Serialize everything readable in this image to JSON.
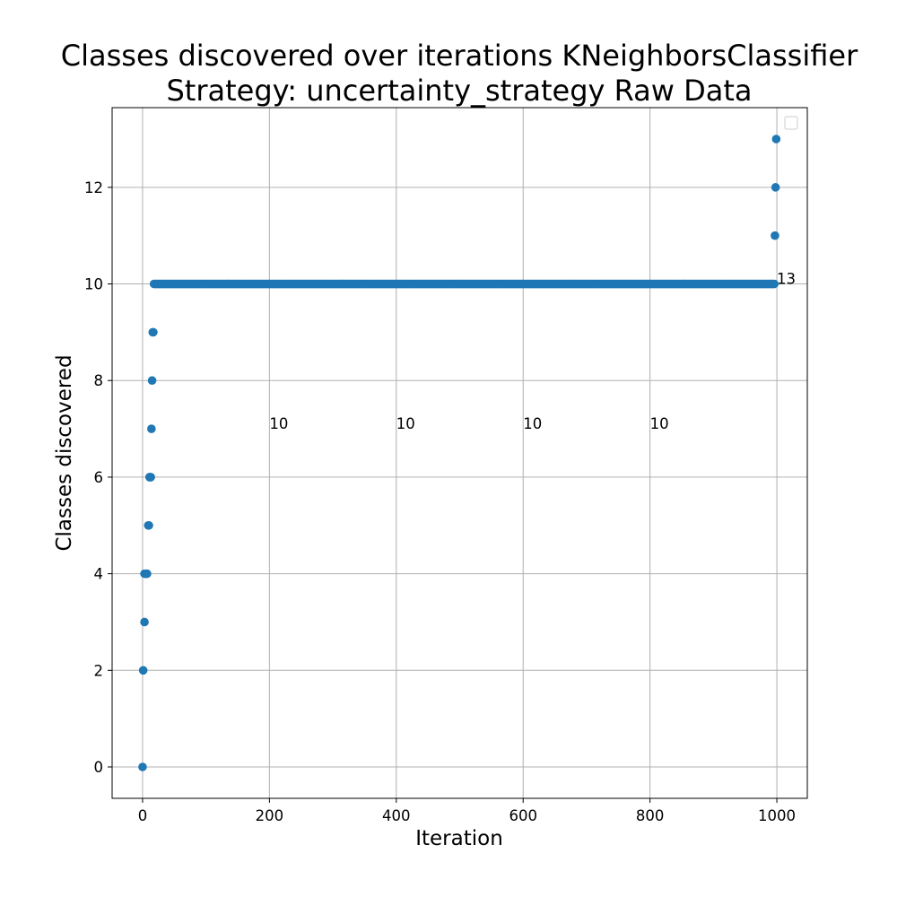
{
  "chart_data": {
    "type": "scatter",
    "title_line1": "Classes discovered over iterations KNeighborsClassifier",
    "title_line2": "Strategy: uncertainty_strategy Raw Data",
    "xlabel": "Iteration",
    "ylabel": "Classes discovered",
    "xlim": [
      -48,
      1048
    ],
    "ylim": [
      -0.65,
      13.65
    ],
    "xticks": [
      0,
      200,
      400,
      600,
      800,
      1000
    ],
    "yticks": [
      0,
      2,
      4,
      6,
      8,
      10,
      12
    ],
    "grid": true,
    "legend": "top-right (empty)",
    "color": "#1f77b4",
    "points": [
      {
        "x": 0,
        "y": 0
      },
      {
        "x": 1,
        "y": 2
      },
      {
        "x": 3,
        "y": 3
      },
      {
        "x": 3,
        "y": 4
      },
      {
        "x": 5,
        "y": 4
      },
      {
        "x": 6,
        "y": 4
      },
      {
        "x": 7,
        "y": 4
      },
      {
        "x": 9,
        "y": 5
      },
      {
        "x": 10,
        "y": 5
      },
      {
        "x": 11,
        "y": 6
      },
      {
        "x": 12,
        "y": 6
      },
      {
        "x": 13,
        "y": 6
      },
      {
        "x": 14,
        "y": 7
      },
      {
        "x": 15,
        "y": 8
      },
      {
        "x": 16,
        "y": 9
      },
      {
        "x": 17,
        "y": 9
      },
      {
        "x": 997,
        "y": 11
      },
      {
        "x": 998,
        "y": 12
      },
      {
        "x": 999,
        "y": 13
      }
    ],
    "plateau": {
      "y": 10,
      "x_start": 18,
      "x_end": 996
    },
    "annotations": [
      {
        "text": "10",
        "x": 200,
        "y": 7.0
      },
      {
        "text": "10",
        "x": 400,
        "y": 7.0
      },
      {
        "text": "10",
        "x": 600,
        "y": 7.0
      },
      {
        "text": "10",
        "x": 800,
        "y": 7.0
      },
      {
        "text": "13",
        "x": 1000,
        "y": 10.0
      }
    ]
  }
}
